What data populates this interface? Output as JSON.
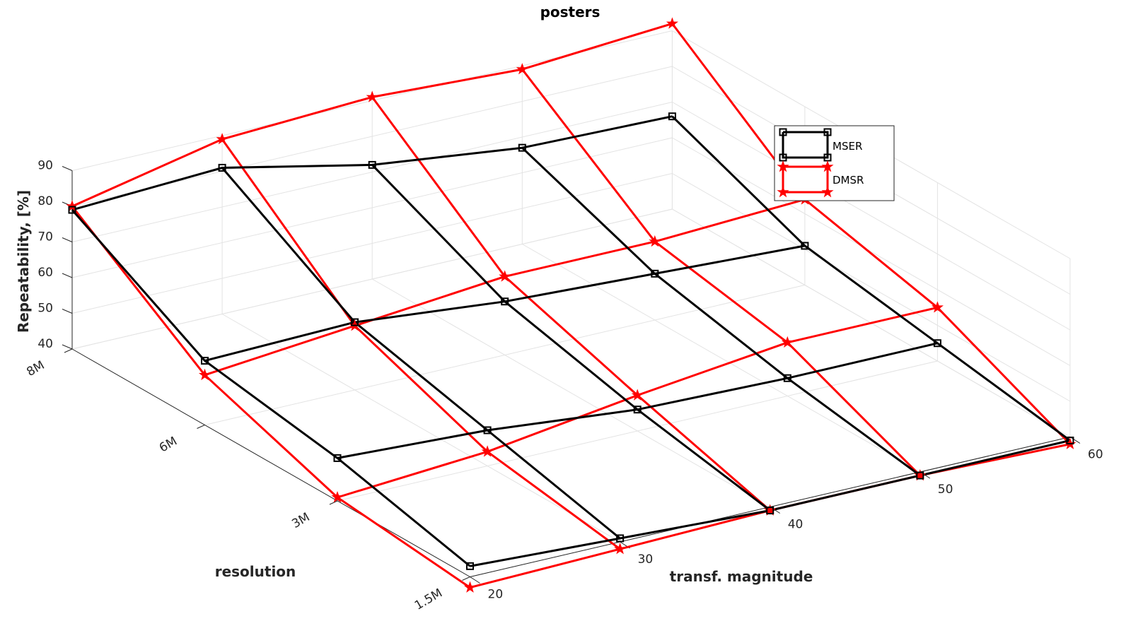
{
  "chart_data": {
    "type": "line",
    "title": "posters",
    "xlabel": "transf. magnitude",
    "ylabel": "resolution",
    "zlabel": "Repeatability, [%]",
    "x_ticks": [
      "20",
      "30",
      "40",
      "50",
      "60"
    ],
    "y_ticks": [
      "8M",
      "6M",
      "3M",
      "1.5M"
    ],
    "z_ticks": [
      "40",
      "50",
      "60",
      "70",
      "80",
      "90"
    ],
    "zlim": [
      40,
      90
    ],
    "grid": true,
    "legend_position": "top-right",
    "x": [
      20,
      30,
      40,
      50,
      60
    ],
    "y": [
      "8M",
      "6M",
      "3M",
      "1.5M"
    ],
    "series": [
      {
        "name": "MSER",
        "color": "#000000",
        "marker": "square",
        "values": [
          [
            79,
            81,
            72,
            67,
            66
          ],
          [
            58,
            59,
            55,
            53,
            51
          ],
          [
            52,
            50,
            46,
            45,
            45
          ],
          [
            43,
            41,
            39,
            39,
            39
          ]
        ]
      },
      {
        "name": "DMSR",
        "color": "#ff0000",
        "marker": "star",
        "values": [
          [
            80,
            89,
            91,
            89,
            92
          ],
          [
            54,
            58,
            62,
            62,
            64
          ],
          [
            41,
            44,
            50,
            55,
            55
          ],
          [
            37,
            38,
            39,
            39,
            38
          ]
        ]
      }
    ]
  }
}
